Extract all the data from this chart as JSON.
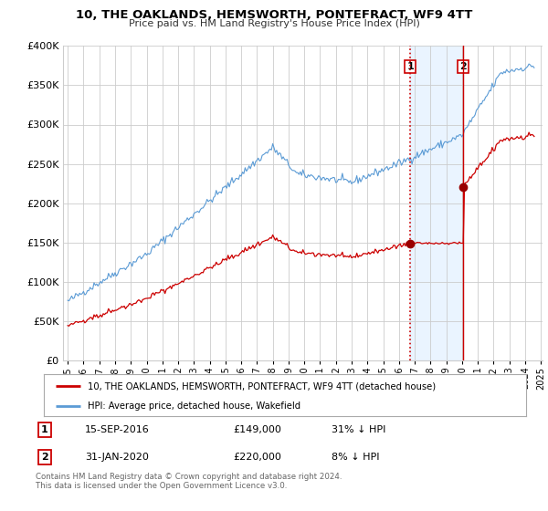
{
  "title": "10, THE OAKLANDS, HEMSWORTH, PONTEFRACT, WF9 4TT",
  "subtitle": "Price paid vs. HM Land Registry's House Price Index (HPI)",
  "footer": "Contains HM Land Registry data © Crown copyright and database right 2024.\nThis data is licensed under the Open Government Licence v3.0.",
  "legend_line1": "10, THE OAKLANDS, HEMSWORTH, PONTEFRACT, WF9 4TT (detached house)",
  "legend_line2": "HPI: Average price, detached house, Wakefield",
  "transaction1_label": "1",
  "transaction1_date": "15-SEP-2016",
  "transaction1_price": "£149,000",
  "transaction1_hpi": "31% ↓ HPI",
  "transaction2_label": "2",
  "transaction2_date": "31-JAN-2020",
  "transaction2_price": "£220,000",
  "transaction2_hpi": "8% ↓ HPI",
  "property_color": "#cc0000",
  "hpi_color": "#5b9bd5",
  "marker_color": "#990000",
  "vline1_color": "#cc0000",
  "vline2_color": "#cc0000",
  "shade_color": "#ddeeff",
  "ylim": [
    0,
    400000
  ],
  "yticks": [
    0,
    50000,
    100000,
    150000,
    200000,
    250000,
    300000,
    350000,
    400000
  ],
  "transaction1_x": 2016.708,
  "transaction1_y": 149000,
  "transaction2_x": 2020.083,
  "transaction2_y": 220000,
  "vline1_x": 2016.708,
  "vline2_x": 2020.083,
  "shade_x1": 2016.708,
  "shade_x2": 2020.083,
  "xlim_left": 1995.0,
  "xlim_right": 2025.1
}
